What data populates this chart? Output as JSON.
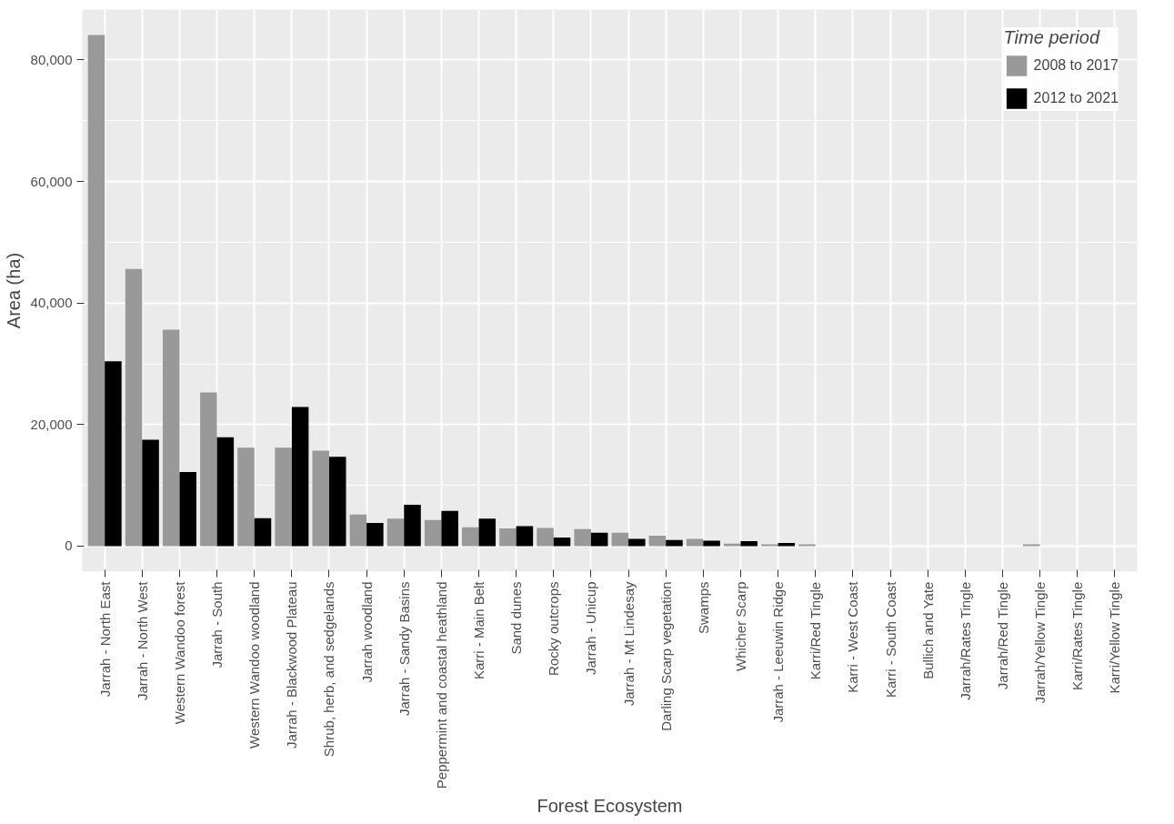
{
  "chart_data": {
    "type": "bar",
    "xlabel": "Forest Ecosystem",
    "ylabel": "Area (ha)",
    "legend_title": "Time period",
    "categories": [
      "Jarrah - North East",
      "Jarrah - North West",
      "Western Wandoo forest",
      "Jarrah - South",
      "Western Wandoo woodland",
      "Jarrah - Blackwood Plateau",
      "Shrub, herb, and sedgelands",
      "Jarrah woodland",
      "Jarrah - Sandy Basins",
      "Peppermint and coastal heathland",
      "Karri - Main Belt",
      "Sand dunes",
      "Rocky outcrops",
      "Jarrah - Unicup",
      "Jarrah - Mt Lindesay",
      "Darling Scarp vegetation",
      "Swamps",
      "Whicher Scarp",
      "Jarrah - Leeuwin Ridge",
      "Karri/Red Tingle",
      "Karri - West Coast",
      "Karri - South Coast",
      "Bullich and Yate",
      "Jarrah/Rates Tingle",
      "Jarrah/Red Tingle",
      "Jarrah/Yellow Tingle",
      "Karri/Rates Tingle",
      "Karri/Yellow Tingle"
    ],
    "series": [
      {
        "name": "2008 to 2017",
        "color": "#999999",
        "values": [
          84100,
          45600,
          35600,
          25300,
          16200,
          16200,
          15700,
          5200,
          4500,
          4300,
          3100,
          2900,
          3000,
          2800,
          2200,
          1700,
          1200,
          400,
          300,
          300,
          0,
          0,
          0,
          0,
          0,
          300,
          0,
          0
        ]
      },
      {
        "name": "2012 to 2021",
        "color": "#000000",
        "values": [
          30400,
          17500,
          12200,
          17900,
          4600,
          22900,
          14700,
          3800,
          6800,
          5800,
          4500,
          3300,
          1400,
          2200,
          1200,
          1000,
          900,
          800,
          500,
          0,
          0,
          0,
          0,
          0,
          0,
          0,
          0,
          0
        ]
      }
    ],
    "ylim": [
      -4200,
      88300
    ],
    "yticks": [
      {
        "value": 0,
        "label": "0"
      },
      {
        "value": 20000,
        "label": "20,000"
      },
      {
        "value": 40000,
        "label": "40,000"
      },
      {
        "value": 60000,
        "label": "60,000"
      },
      {
        "value": 80000,
        "label": "80,000"
      }
    ],
    "grid": true,
    "legend": "top right"
  }
}
